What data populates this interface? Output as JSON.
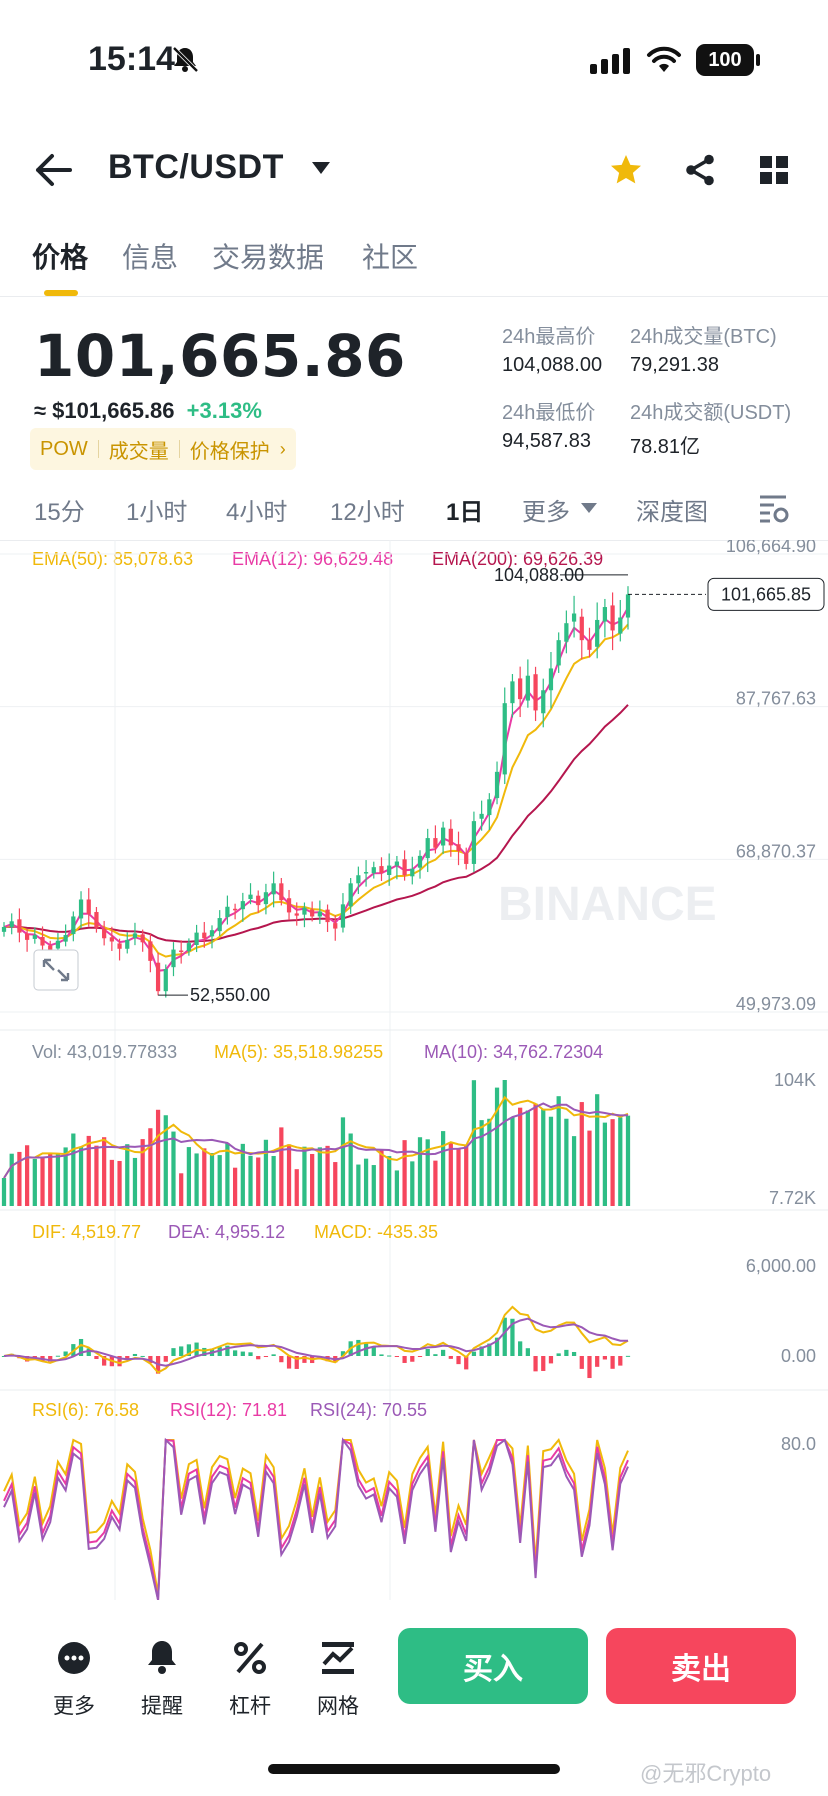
{
  "status": {
    "time": "15:14",
    "battery": "100"
  },
  "header": {
    "pair": "BTC/USDT"
  },
  "tabs": [
    {
      "label": "价格"
    },
    {
      "label": "信息"
    },
    {
      "label": "交易数据"
    },
    {
      "label": "社区"
    }
  ],
  "price": {
    "last": "101,665.86",
    "approx": "≈ $101,665.86",
    "change": "+3.13%",
    "chips": [
      "POW",
      "成交量",
      "价格保护"
    ],
    "stats": [
      {
        "label": "24h最高价",
        "value": "104,088.00"
      },
      {
        "label": "24h成交量(BTC)",
        "value": "79,291.38"
      },
      {
        "label": "24h最低价",
        "value": "94,587.83"
      },
      {
        "label": "24h成交额(USDT)",
        "value": "78.81亿"
      }
    ]
  },
  "timeframes": [
    {
      "label": "15分"
    },
    {
      "label": "1小时"
    },
    {
      "label": "4小时"
    },
    {
      "label": "12小时"
    },
    {
      "label": "1日"
    },
    {
      "label": "更多"
    },
    {
      "label": "深度图"
    }
  ],
  "active_timeframe": "1日",
  "chart_data": {
    "type": "candlestick",
    "watermark": "BINANCE",
    "ema_legend": {
      "ema50": "EMA(50): 85,078.63",
      "ema12": "EMA(12): 96,629.48",
      "ema200": "EMA(200): 69,626.39"
    },
    "y_ticks": [
      "106,664.90",
      "87,767.63",
      "68,870.37",
      "49,973.09"
    ],
    "ylim": [
      49973.09,
      106664.9
    ],
    "high_label": "104,088.00",
    "low_label": "52,550.00",
    "last_label": "101,665.85",
    "closes": [
      60500,
      61200,
      59800,
      58900,
      59500,
      58200,
      57600,
      58800,
      59500,
      61800,
      63900,
      62100,
      60400,
      59100,
      58700,
      57800,
      58900,
      59700,
      58600,
      56300,
      52550,
      55300,
      57700,
      57400,
      58500,
      59800,
      59100,
      60100,
      61600,
      63000,
      62700,
      63700,
      64500,
      63200,
      64800,
      65900,
      63800,
      62300,
      61900,
      62900,
      61800,
      62400,
      61100,
      60300,
      63300,
      65900,
      66900,
      67300,
      67900,
      67200,
      68100,
      68600,
      66900,
      67700,
      69300,
      71500,
      70300,
      72800,
      70600,
      69900,
      68300,
      73600,
      74500,
      76300,
      79700,
      88200,
      90900,
      88700,
      91600,
      87300,
      89800,
      92500,
      96000,
      98100,
      99300,
      96000,
      94800,
      98500,
      100100,
      97200,
      98800,
      101665.86
    ],
    "volume": {
      "vol": "Vol: 43,019.77833",
      "ma5": "MA(5): 35,518.98255",
      "ma10": "MA(10): 34,762.72304",
      "top": "104K",
      "bottom": "7.72K"
    },
    "macd": {
      "dif": "DIF: 4,519.77",
      "dea": "DEA: 4,955.12",
      "macd": "MACD: -435.35",
      "top": "6,000.00",
      "zero": "0.00"
    },
    "rsi": {
      "rsi6": "RSI(6): 76.58",
      "rsi12": "RSI(12): 71.81",
      "rsi24": "RSI(24): 70.55",
      "top": "80.0"
    }
  },
  "bottom_nav": [
    {
      "label": "更多"
    },
    {
      "label": "提醒"
    },
    {
      "label": "杠杆"
    },
    {
      "label": "网格"
    }
  ],
  "actions": {
    "buy": "买入",
    "sell": "卖出"
  },
  "watermark_user": "@无邪Crypto",
  "colors": {
    "up": "#2ebd85",
    "down": "#f6465d",
    "accent": "#f0b90b"
  }
}
